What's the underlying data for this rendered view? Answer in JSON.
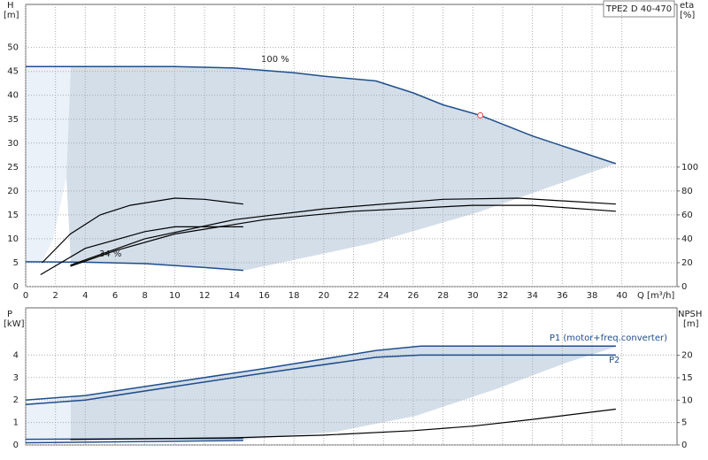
{
  "label": "TPE2 D 40-470",
  "chart_data": [
    {
      "type": "line",
      "y_label": "H",
      "y_unit": "[m]",
      "y2_label": "eta",
      "y2_unit": "[%]",
      "x_label": "Q [m³/h]",
      "xlim": [
        0,
        43.7
      ],
      "xticks": [
        0,
        2,
        4,
        6,
        8,
        10,
        12,
        14,
        16,
        18,
        20,
        22,
        24,
        26,
        28,
        30,
        32,
        34,
        36,
        38,
        40
      ],
      "ylim": [
        0,
        59
      ],
      "yticks": [
        0,
        5,
        10,
        15,
        20,
        25,
        30,
        35,
        40,
        45,
        50
      ],
      "y2lim": [
        0,
        236
      ],
      "y2ticks": [
        0,
        20,
        40,
        60,
        80,
        100
      ],
      "grid": true,
      "annotations": [
        "100 %",
        "34 %"
      ],
      "series": [
        {
          "color": "#1f4e8c",
          "x": [
            0,
            6,
            10,
            14,
            18,
            20,
            23.5,
            26,
            28,
            30.5,
            34,
            39.6
          ],
          "values": [
            46,
            46,
            46,
            45.7,
            44.7,
            44,
            43,
            40.5,
            38,
            35.8,
            31.5,
            25.7
          ]
        },
        {
          "color": "#1f4e8c",
          "x": [
            0,
            4,
            8,
            12,
            14.6
          ],
          "values": [
            5.2,
            5.1,
            4.8,
            4,
            3.4
          ]
        },
        {
          "color": "#000000",
          "axis": "y2",
          "x": [
            1.1,
            3,
            5,
            7,
            10,
            12,
            14.6
          ],
          "values": [
            20,
            44,
            60,
            68,
            74,
            73,
            69
          ]
        },
        {
          "color": "#000000",
          "axis": "y2",
          "x": [
            3,
            8,
            14,
            20,
            28,
            33,
            39.6
          ],
          "values": [
            18,
            40,
            56,
            65,
            73,
            74,
            69
          ]
        },
        {
          "color": "#000000",
          "axis": "y2",
          "x": [
            1,
            4,
            8,
            10,
            14.6
          ],
          "values": [
            10,
            32,
            46,
            50,
            50
          ]
        },
        {
          "color": "#000000",
          "axis": "y2",
          "x": [
            3,
            6,
            10,
            16,
            22,
            30,
            34,
            39.6
          ],
          "values": [
            17,
            30,
            44,
            56,
            63,
            68,
            68,
            63
          ]
        }
      ],
      "duty_point": {
        "x": 30.5,
        "y": 35.8,
        "color": "#e04040"
      }
    },
    {
      "type": "line",
      "y_label": "P",
      "y_unit": "[kW]",
      "y2_label": "NPSH",
      "y2_unit": "[m]",
      "xlim": [
        0,
        43.7
      ],
      "xticks": [
        0,
        2,
        4,
        6,
        8,
        10,
        12,
        14,
        16,
        18,
        20,
        22,
        24,
        26,
        28,
        30,
        32,
        34,
        36,
        38,
        40
      ],
      "ylim": [
        0,
        6.1
      ],
      "yticks": [
        0,
        1,
        2,
        3,
        4
      ],
      "y2lim": [
        0,
        30.6
      ],
      "y2ticks": [
        0,
        5,
        10,
        15,
        20
      ],
      "grid": true,
      "series": [
        {
          "name": "P1 (motor+freq.converter)",
          "color": "#1f4e8c",
          "x": [
            0,
            4,
            10,
            16,
            23.5,
            26.5,
            39.6
          ],
          "values": [
            2,
            2.2,
            2.8,
            3.4,
            4.2,
            4.4,
            4.4
          ]
        },
        {
          "name": "P2",
          "color": "#1f4e8c",
          "x": [
            0,
            4,
            10,
            16,
            23.5,
            26.5,
            39.6
          ],
          "values": [
            1.8,
            2,
            2.6,
            3.2,
            3.9,
            4,
            4
          ]
        },
        {
          "color": "#1f4e8c",
          "x": [
            0,
            14.6
          ],
          "values": [
            0.25,
            0.3
          ]
        },
        {
          "color": "#1f4e8c",
          "x": [
            0,
            14.6
          ],
          "values": [
            0.1,
            0.2
          ]
        },
        {
          "color": "#000000",
          "axis": "y2",
          "x": [
            3,
            14,
            20,
            26,
            30,
            34,
            39.6
          ],
          "values": [
            1.2,
            1.6,
            2.2,
            3.2,
            4.2,
            5.7,
            8
          ]
        }
      ]
    }
  ]
}
